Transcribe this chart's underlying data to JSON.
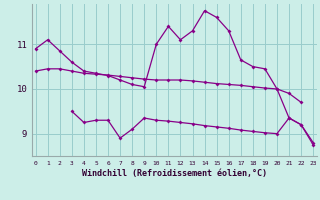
{
  "hours": [
    0,
    1,
    2,
    3,
    4,
    5,
    6,
    7,
    8,
    9,
    10,
    11,
    12,
    13,
    14,
    15,
    16,
    17,
    18,
    19,
    20,
    21,
    22,
    23
  ],
  "line1": [
    10.9,
    11.1,
    10.85,
    10.6,
    10.4,
    10.35,
    10.3,
    10.2,
    10.1,
    10.05,
    11.0,
    11.4,
    11.1,
    11.3,
    11.75,
    11.6,
    11.3,
    10.65,
    10.5,
    10.45,
    10.0,
    9.35,
    9.2,
    8.8
  ],
  "line2": [
    10.4,
    10.45,
    10.45,
    10.4,
    10.35,
    10.33,
    10.31,
    10.28,
    10.25,
    10.22,
    10.2,
    10.2,
    10.2,
    10.18,
    10.15,
    10.12,
    10.1,
    10.08,
    10.05,
    10.02,
    10.0,
    9.9,
    9.7,
    null
  ],
  "line3": [
    null,
    null,
    null,
    9.5,
    9.25,
    9.3,
    9.3,
    8.9,
    9.1,
    9.35,
    9.3,
    9.28,
    9.25,
    9.22,
    9.18,
    9.15,
    9.12,
    9.08,
    9.05,
    9.02,
    9.0,
    9.35,
    9.2,
    8.75
  ],
  "color": "#880088",
  "bg_color": "#cceee8",
  "grid_color": "#99cccc",
  "xlabel": "Windchill (Refroidissement éolien,°C)",
  "yticks": [
    9,
    10,
    11
  ],
  "ylim": [
    8.5,
    11.9
  ],
  "xlim": [
    -0.3,
    23.3
  ]
}
